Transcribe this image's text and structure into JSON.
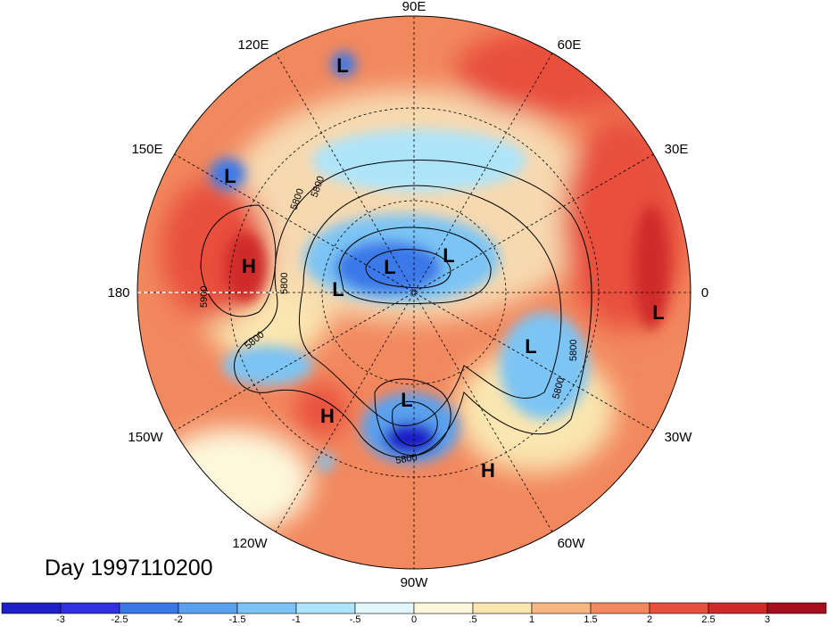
{
  "title": "Day 1997110200",
  "longitude_labels": [
    "90E",
    "60E",
    "30E",
    "0",
    "30W",
    "60W",
    "90W",
    "120W",
    "150W",
    "180",
    "150E",
    "120E"
  ],
  "contour_labels": [
    "5800",
    "5800",
    "5800",
    "5800",
    "5800",
    "5800",
    "5800",
    "5900"
  ],
  "pressure_centers": [
    {
      "label": "L"
    },
    {
      "label": "L"
    },
    {
      "label": "L"
    },
    {
      "label": "L"
    },
    {
      "label": "L"
    },
    {
      "label": "L"
    },
    {
      "label": "L"
    },
    {
      "label": "L"
    },
    {
      "label": "H"
    },
    {
      "label": "H"
    },
    {
      "label": "H"
    }
  ],
  "colorbar": {
    "ticks": [
      "-3",
      "-2.5",
      "-2",
      "-1.5",
      "-1",
      "-.5",
      "0",
      ".5",
      "1",
      "1.5",
      "2",
      "2.5",
      "3"
    ],
    "colors": [
      "#1f1fc8",
      "#3030e0",
      "#3a78e8",
      "#5aa0ee",
      "#7cc4f4",
      "#aee4fa",
      "#e2f6fc",
      "#fdf8dc",
      "#fae6b0",
      "#f7b684",
      "#f2885e",
      "#e8503e",
      "#cf2a2a",
      "#a5101c"
    ]
  }
}
